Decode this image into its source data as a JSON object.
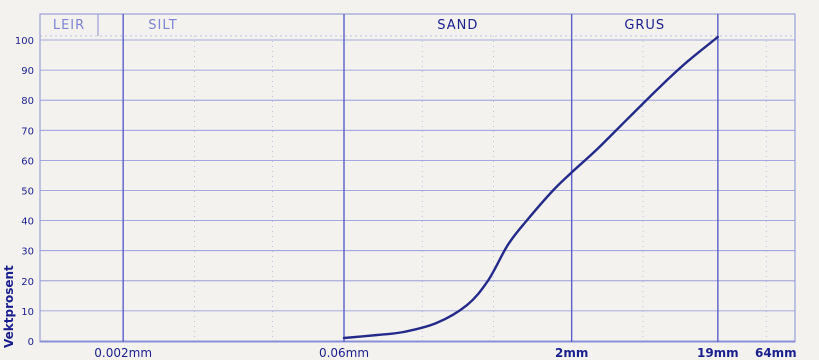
{
  "chart_data": {
    "type": "line",
    "title": "",
    "ylabel": "Vektprosent",
    "ylim": [
      0,
      100
    ],
    "yticks": [
      0,
      10,
      20,
      30,
      40,
      50,
      60,
      70,
      80,
      90,
      100
    ],
    "x_scale": "log",
    "x_unit": "mm",
    "grain_classes": [
      {
        "label": "LEIR"
      },
      {
        "label": "SILT"
      },
      {
        "label": "SAND"
      },
      {
        "label": "GRUS"
      }
    ],
    "xticks": [
      {
        "label": "0.002mm",
        "value": 0.002
      },
      {
        "label": "0.06mm",
        "value": 0.06
      },
      {
        "label": "2mm",
        "value": 2
      },
      {
        "label": "19mm",
        "value": 19
      },
      {
        "label": "64mm",
        "value": 64
      }
    ],
    "series": [
      {
        "x": [
          0.06,
          0.1,
          0.15,
          0.25,
          0.4,
          0.55,
          0.75,
          1.0,
          1.5,
          2.0,
          3.0,
          5.0,
          8.0,
          12.0,
          19.0
        ],
        "y": [
          1,
          2,
          3,
          6,
          12,
          20,
          32,
          40,
          50,
          56,
          64,
          75,
          85,
          93,
          101
        ]
      }
    ],
    "colors": {
      "line": "#242a8a",
      "grid": "#8a90d8",
      "text": "#1a1f8f"
    },
    "grid": true
  }
}
